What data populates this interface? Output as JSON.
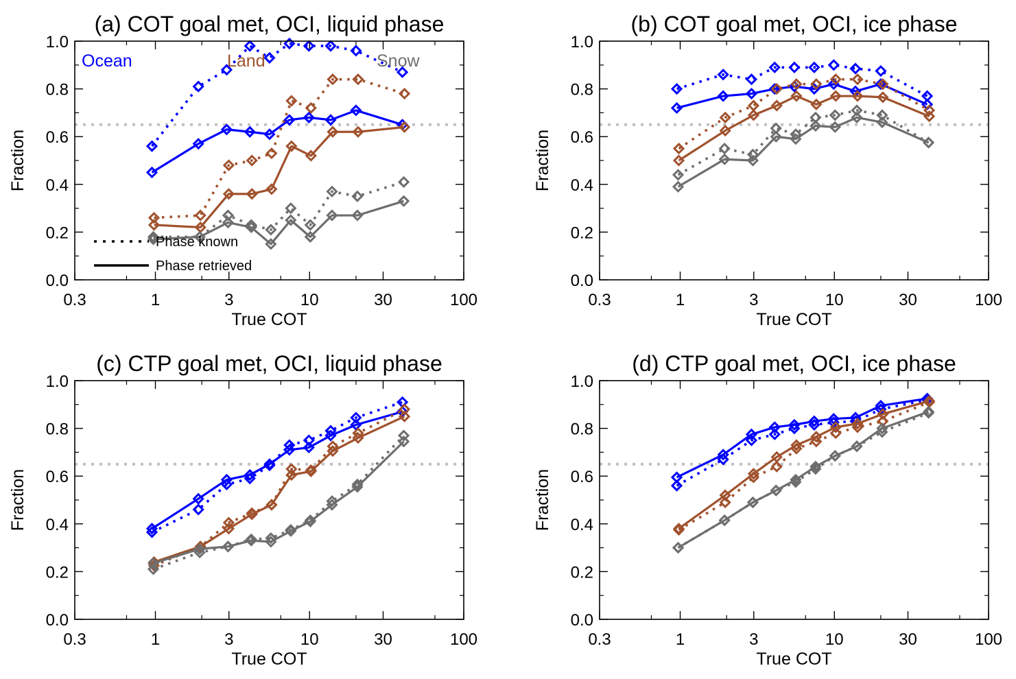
{
  "chart_data": [
    {
      "id": "a",
      "type": "line",
      "title": "(a) COT goal met, OCI, liquid phase",
      "xlabel": "True COT",
      "ylabel": "Fraction",
      "xscale": "log",
      "xlim": [
        0.3,
        100
      ],
      "ylim": [
        0.0,
        1.0
      ],
      "xticks": [
        0.3,
        1,
        3,
        10,
        30,
        100
      ],
      "xtick_labels": [
        "0.3",
        "1",
        "3",
        "10",
        "30",
        "100"
      ],
      "yticks": [
        0.0,
        0.2,
        0.4,
        0.6,
        0.8,
        1.0
      ],
      "ytick_labels": [
        "0.0",
        "0.2",
        "0.4",
        "0.6",
        "0.8",
        "1.0"
      ],
      "reference_line": 0.65,
      "region_labels": [
        {
          "text": "Ocean",
          "color": "#0000ff"
        },
        {
          "text": "Land",
          "color": "#a0522d"
        },
        {
          "text": "Snow",
          "color": "#6e6e6e"
        }
      ],
      "legend": {
        "items": [
          {
            "label": "Phase known",
            "style": "dotted"
          },
          {
            "label": "Phase retrieved",
            "style": "solid"
          }
        ],
        "position": "bottom-left"
      },
      "x": [
        0.95,
        1.9,
        2.9,
        4.1,
        5.5,
        7.4,
        9.9,
        13.7,
        20,
        40
      ],
      "series": [
        {
          "name": "Ocean, phase known",
          "surface": "Ocean",
          "phase": "known",
          "color": "#0000ff",
          "style": "dotted",
          "values": [
            0.56,
            0.81,
            0.88,
            0.98,
            0.93,
            0.99,
            0.98,
            0.98,
            0.96,
            0.87
          ]
        },
        {
          "name": "Ocean, phase retrieved",
          "surface": "Ocean",
          "phase": "retrieved",
          "color": "#0000ff",
          "style": "solid",
          "values": [
            0.45,
            0.57,
            0.63,
            0.62,
            0.61,
            0.67,
            0.68,
            0.67,
            0.71,
            0.65
          ]
        },
        {
          "name": "Land, phase known",
          "surface": "Land",
          "phase": "known",
          "color": "#a0522d",
          "style": "dotted",
          "values": [
            0.26,
            0.27,
            0.48,
            0.5,
            0.53,
            0.75,
            0.72,
            0.84,
            0.84,
            0.78
          ]
        },
        {
          "name": "Land, phase retrieved",
          "surface": "Land",
          "phase": "retrieved",
          "color": "#a0522d",
          "style": "solid",
          "values": [
            0.23,
            0.22,
            0.36,
            0.36,
            0.38,
            0.56,
            0.52,
            0.62,
            0.62,
            0.64
          ]
        },
        {
          "name": "Snow, phase known",
          "surface": "Snow",
          "phase": "known",
          "color": "#6e6e6e",
          "style": "dotted",
          "values": [
            0.18,
            0.18,
            0.27,
            0.23,
            0.21,
            0.3,
            0.23,
            0.37,
            0.35,
            0.41
          ]
        },
        {
          "name": "Snow, phase retrieved",
          "surface": "Snow",
          "phase": "retrieved",
          "color": "#6e6e6e",
          "style": "solid",
          "values": [
            0.17,
            0.18,
            0.24,
            0.22,
            0.15,
            0.25,
            0.18,
            0.27,
            0.27,
            0.33
          ]
        }
      ]
    },
    {
      "id": "b",
      "type": "line",
      "title": "(b) COT goal met, OCI, ice phase",
      "xlabel": "True COT",
      "ylabel": "Fraction",
      "xscale": "log",
      "xlim": [
        0.3,
        100
      ],
      "ylim": [
        0.0,
        1.0
      ],
      "xticks": [
        0.3,
        1,
        3,
        10,
        30,
        100
      ],
      "xtick_labels": [
        "0.3",
        "1",
        "3",
        "10",
        "30",
        "100"
      ],
      "yticks": [
        0.0,
        0.2,
        0.4,
        0.6,
        0.8,
        1.0
      ],
      "ytick_labels": [
        "0.0",
        "0.2",
        "0.4",
        "0.6",
        "0.8",
        "1.0"
      ],
      "reference_line": 0.65,
      "x": [
        0.95,
        1.9,
        2.9,
        4.1,
        5.5,
        7.4,
        9.9,
        13.7,
        20,
        40
      ],
      "series": [
        {
          "name": "Ocean, phase known",
          "surface": "Ocean",
          "phase": "known",
          "color": "#0000ff",
          "style": "dotted",
          "values": [
            0.8,
            0.86,
            0.84,
            0.89,
            0.89,
            0.89,
            0.9,
            0.885,
            0.875,
            0.77
          ]
        },
        {
          "name": "Ocean, phase retrieved",
          "surface": "Ocean",
          "phase": "retrieved",
          "color": "#0000ff",
          "style": "solid",
          "values": [
            0.72,
            0.77,
            0.78,
            0.8,
            0.81,
            0.8,
            0.82,
            0.79,
            0.82,
            0.735
          ]
        },
        {
          "name": "Land, phase known",
          "surface": "Land",
          "phase": "known",
          "color": "#a0522d",
          "style": "dotted",
          "values": [
            0.55,
            0.68,
            0.73,
            0.8,
            0.82,
            0.82,
            0.84,
            0.84,
            0.82,
            0.71
          ]
        },
        {
          "name": "Land, phase retrieved",
          "surface": "Land",
          "phase": "retrieved",
          "color": "#a0522d",
          "style": "solid",
          "values": [
            0.5,
            0.625,
            0.69,
            0.73,
            0.77,
            0.735,
            0.77,
            0.77,
            0.765,
            0.685
          ]
        },
        {
          "name": "Snow, phase known",
          "surface": "Snow",
          "phase": "known",
          "color": "#6e6e6e",
          "style": "dotted",
          "values": [
            0.44,
            0.55,
            0.525,
            0.635,
            0.61,
            0.68,
            0.69,
            0.71,
            0.69,
            0.575
          ]
        },
        {
          "name": "Snow, phase retrieved",
          "surface": "Snow",
          "phase": "retrieved",
          "color": "#6e6e6e",
          "style": "solid",
          "values": [
            0.39,
            0.505,
            0.5,
            0.6,
            0.59,
            0.645,
            0.64,
            0.68,
            0.66,
            0.575
          ]
        }
      ]
    },
    {
      "id": "c",
      "type": "line",
      "title": "(c) CTP goal met, OCI, liquid phase",
      "xlabel": "True COT",
      "ylabel": "Fraction",
      "xscale": "log",
      "xlim": [
        0.3,
        100
      ],
      "ylim": [
        0.0,
        1.0
      ],
      "xticks": [
        0.3,
        1,
        3,
        10,
        30,
        100
      ],
      "xtick_labels": [
        "0.3",
        "1",
        "3",
        "10",
        "30",
        "100"
      ],
      "yticks": [
        0.0,
        0.2,
        0.4,
        0.6,
        0.8,
        1.0
      ],
      "ytick_labels": [
        "0.0",
        "0.2",
        "0.4",
        "0.6",
        "0.8",
        "1.0"
      ],
      "reference_line": 0.65,
      "x": [
        0.95,
        1.9,
        2.9,
        4.1,
        5.5,
        7.4,
        9.9,
        13.7,
        20,
        40
      ],
      "series": [
        {
          "name": "Ocean, phase known",
          "surface": "Ocean",
          "phase": "known",
          "color": "#0000ff",
          "style": "dotted",
          "values": [
            0.365,
            0.46,
            0.565,
            0.59,
            0.645,
            0.73,
            0.75,
            0.79,
            0.845,
            0.91
          ]
        },
        {
          "name": "Ocean, phase retrieved",
          "surface": "Ocean",
          "phase": "retrieved",
          "color": "#0000ff",
          "style": "solid",
          "values": [
            0.38,
            0.505,
            0.585,
            0.605,
            0.65,
            0.71,
            0.72,
            0.77,
            0.815,
            0.87
          ]
        },
        {
          "name": "Land, phase known",
          "surface": "Land",
          "phase": "known",
          "color": "#a0522d",
          "style": "dotted",
          "values": [
            0.225,
            0.305,
            0.405,
            0.445,
            0.48,
            0.63,
            0.625,
            0.725,
            0.78,
            0.88
          ]
        },
        {
          "name": "Land, phase retrieved",
          "surface": "Land",
          "phase": "retrieved",
          "color": "#a0522d",
          "style": "solid",
          "values": [
            0.24,
            0.305,
            0.38,
            0.44,
            0.48,
            0.605,
            0.62,
            0.705,
            0.76,
            0.85
          ]
        },
        {
          "name": "Snow, phase known",
          "surface": "Snow",
          "phase": "known",
          "color": "#6e6e6e",
          "style": "dotted",
          "values": [
            0.21,
            0.28,
            0.305,
            0.335,
            0.34,
            0.375,
            0.415,
            0.495,
            0.565,
            0.77
          ]
        },
        {
          "name": "Snow, phase retrieved",
          "surface": "Snow",
          "phase": "retrieved",
          "color": "#6e6e6e",
          "style": "solid",
          "values": [
            0.235,
            0.295,
            0.305,
            0.33,
            0.325,
            0.37,
            0.41,
            0.48,
            0.555,
            0.745
          ]
        }
      ]
    },
    {
      "id": "d",
      "type": "line",
      "title": "(d) CTP goal met, OCI, ice phase",
      "xlabel": "True COT",
      "ylabel": "Fraction",
      "xscale": "log",
      "xlim": [
        0.3,
        100
      ],
      "ylim": [
        0.0,
        1.0
      ],
      "xticks": [
        0.3,
        1,
        3,
        10,
        30,
        100
      ],
      "xtick_labels": [
        "0.3",
        "1",
        "3",
        "10",
        "30",
        "100"
      ],
      "yticks": [
        0.0,
        0.2,
        0.4,
        0.6,
        0.8,
        1.0
      ],
      "ytick_labels": [
        "0.0",
        "0.2",
        "0.4",
        "0.6",
        "0.8",
        "1.0"
      ],
      "reference_line": 0.65,
      "x": [
        0.95,
        1.9,
        2.9,
        4.1,
        5.5,
        7.4,
        9.9,
        13.7,
        20,
        40
      ],
      "series": [
        {
          "name": "Ocean, phase known",
          "surface": "Ocean",
          "phase": "known",
          "color": "#0000ff",
          "style": "dotted",
          "values": [
            0.56,
            0.67,
            0.75,
            0.775,
            0.8,
            0.815,
            0.825,
            0.83,
            0.88,
            0.92
          ]
        },
        {
          "name": "Ocean, phase retrieved",
          "surface": "Ocean",
          "phase": "retrieved",
          "color": "#0000ff",
          "style": "solid",
          "values": [
            0.595,
            0.69,
            0.775,
            0.805,
            0.815,
            0.83,
            0.84,
            0.845,
            0.895,
            0.925
          ]
        },
        {
          "name": "Land, phase known",
          "surface": "Land",
          "phase": "known",
          "color": "#a0522d",
          "style": "dotted",
          "values": [
            0.375,
            0.49,
            0.595,
            0.64,
            0.715,
            0.745,
            0.78,
            0.805,
            0.83,
            0.91
          ]
        },
        {
          "name": "Land, phase retrieved",
          "surface": "Land",
          "phase": "retrieved",
          "color": "#a0522d",
          "style": "solid",
          "values": [
            0.38,
            0.52,
            0.61,
            0.68,
            0.73,
            0.765,
            0.805,
            0.82,
            0.86,
            0.915
          ]
        },
        {
          "name": "Snow, phase known",
          "surface": "Snow",
          "phase": "known",
          "color": "#6e6e6e",
          "style": "dotted",
          "values": [
            0.3,
            0.415,
            0.49,
            0.54,
            0.575,
            0.63,
            0.685,
            0.725,
            0.785,
            0.865
          ]
        },
        {
          "name": "Snow, phase retrieved",
          "surface": "Snow",
          "phase": "retrieved",
          "color": "#6e6e6e",
          "style": "solid",
          "values": [
            0.3,
            0.415,
            0.49,
            0.54,
            0.585,
            0.64,
            0.685,
            0.725,
            0.8,
            0.87
          ]
        }
      ]
    }
  ]
}
